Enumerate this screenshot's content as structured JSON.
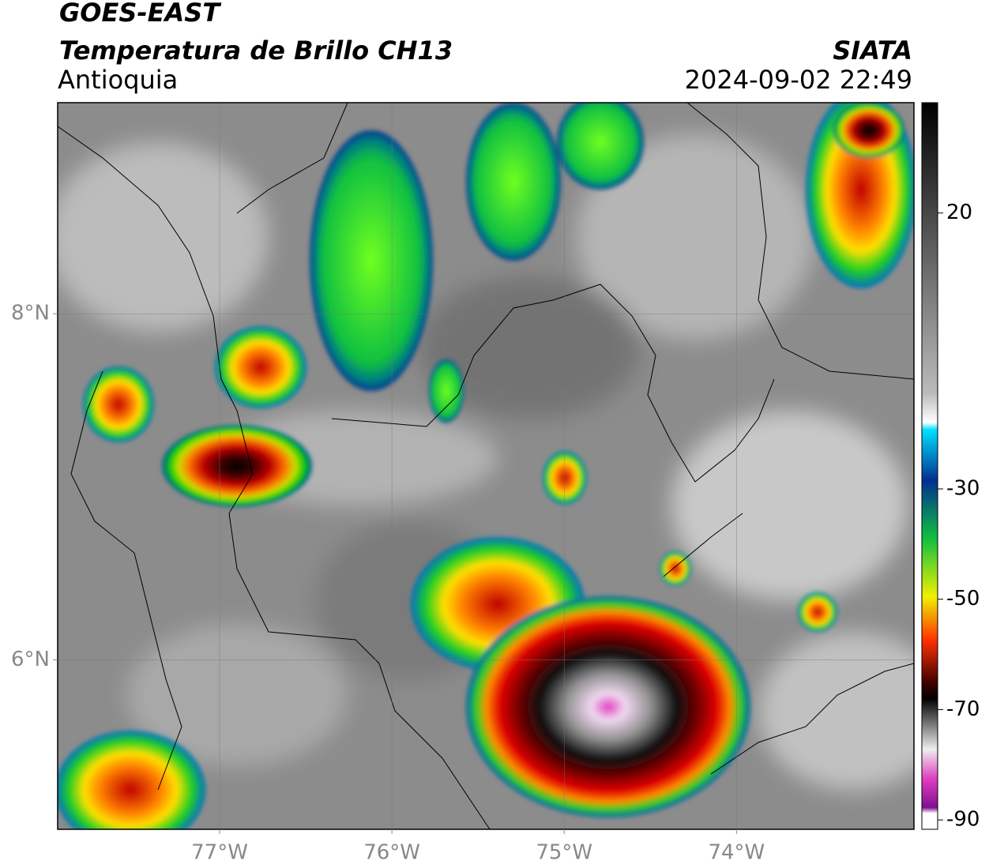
{
  "header": {
    "title": "GOES-EAST",
    "subtitle": "Temperatura de Brillo CH13",
    "region": "Antioquia",
    "source": "SIATA",
    "timestamp": "2024-09-02 22:49"
  },
  "map": {
    "xlim": [
      -77.94,
      -72.97
    ],
    "ylim": [
      5.02,
      9.22
    ],
    "xticks": [
      {
        "value": -77,
        "label": "77°W"
      },
      {
        "value": -76,
        "label": "76°W"
      },
      {
        "value": -75,
        "label": "75°W"
      },
      {
        "value": -74,
        "label": "74°W"
      }
    ],
    "yticks": [
      {
        "value": 8,
        "label": "8°N"
      },
      {
        "value": 6,
        "label": "6°N"
      }
    ],
    "grid": true
  },
  "colorbar": {
    "lim": [
      -91.7,
      40
    ],
    "ticks": [
      20,
      -30,
      -50,
      -70,
      -90
    ]
  }
}
